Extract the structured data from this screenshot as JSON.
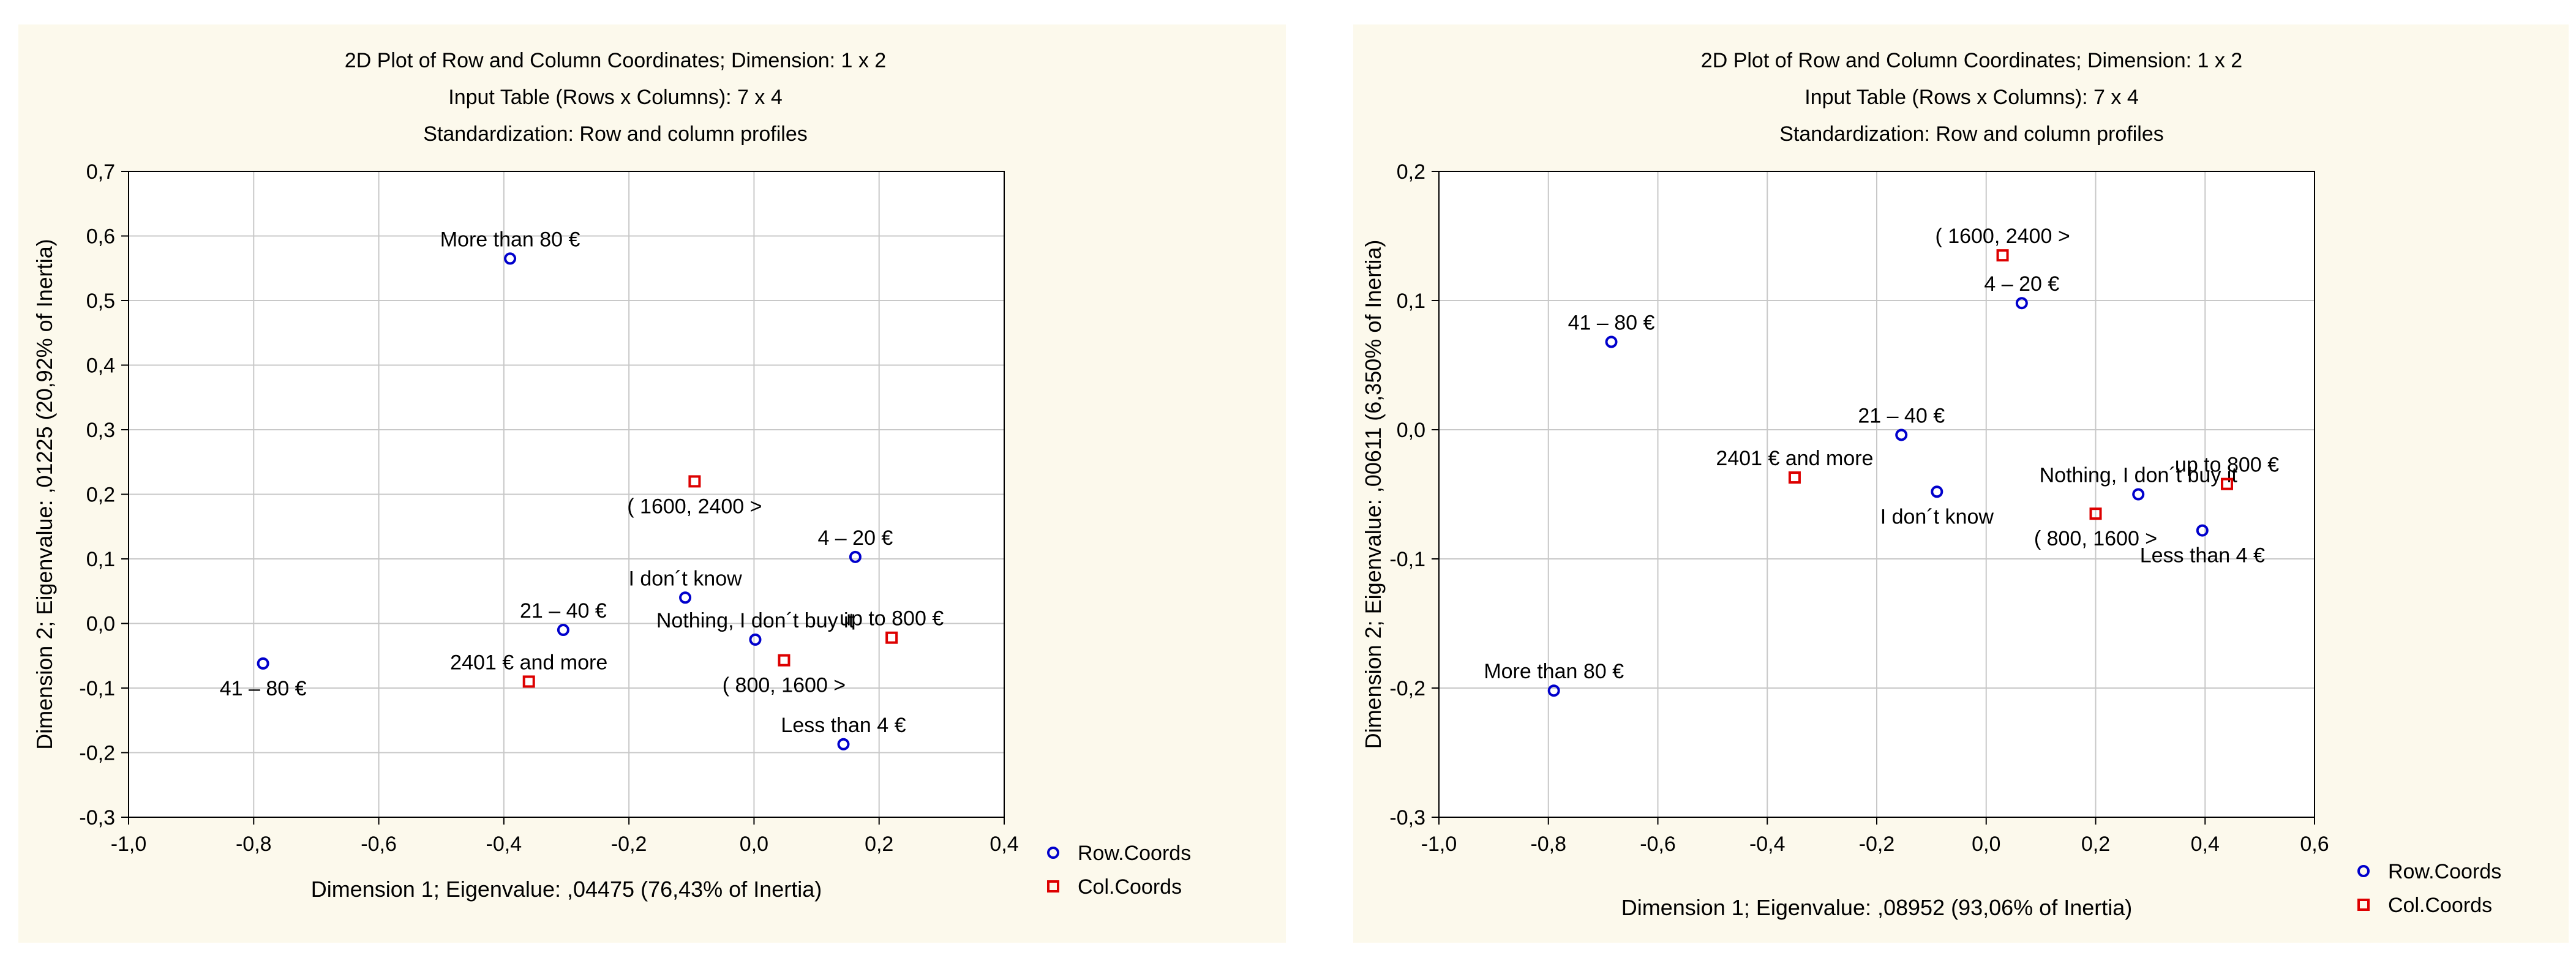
{
  "chart_data": [
    {
      "type": "scatter",
      "title_lines": [
        "2D Plot of Row and Column Coordinates; Dimension:  1 x  2",
        "Input Table (Rows x Columns): 7 x 4",
        "Standardization: Row and column profiles"
      ],
      "xlabel": "Dimension 1; Eigenvalue: ,04475 (76,43% of Inertia)",
      "ylabel": "Dimension 2; Eigenvalue: ,01225 (20,92% of Inertia)",
      "xlim": [
        -1.0,
        0.4
      ],
      "ylim": [
        -0.3,
        0.7
      ],
      "x_ticks": [
        -1.0,
        -0.8,
        -0.6,
        -0.4,
        -0.2,
        0.0,
        0.2,
        0.4
      ],
      "x_tick_labels": [
        "-1,0",
        "-0,8",
        "-0,6",
        "-0,4",
        "-0,2",
        "0,0",
        "0,2",
        "0,4"
      ],
      "y_ticks": [
        -0.3,
        -0.2,
        -0.1,
        0.0,
        0.1,
        0.2,
        0.3,
        0.4,
        0.5,
        0.6,
        0.7
      ],
      "y_tick_labels": [
        "-0,3",
        "-0,2",
        "-0,1",
        "0,0",
        "0,1",
        "0,2",
        "0,3",
        "0,4",
        "0,5",
        "0,6",
        "0,7"
      ],
      "grid": true,
      "legend": [
        {
          "name": "Row.Coords",
          "marker": "circle",
          "color": "#0000cc"
        },
        {
          "name": "Col.Coords",
          "marker": "square",
          "color": "#dd0000"
        }
      ],
      "series": [
        {
          "name": "Row.Coords",
          "points": [
            {
              "label": "More than 80 €",
              "x": -0.39,
              "y": 0.565,
              "label_pos": "above"
            },
            {
              "label": "41 – 80 €",
              "x": -0.785,
              "y": -0.062,
              "label_pos": "below"
            },
            {
              "label": "21 – 40 €",
              "x": -0.305,
              "y": -0.01,
              "label_pos": "above"
            },
            {
              "label": "I don´t know",
              "x": -0.11,
              "y": 0.04,
              "label_pos": "above"
            },
            {
              "label": "Nothing, I don´t buy it",
              "x": 0.002,
              "y": -0.025,
              "label_pos": "above"
            },
            {
              "label": "4 – 20 €",
              "x": 0.162,
              "y": 0.103,
              "label_pos": "above"
            },
            {
              "label": "Less than 4 €",
              "x": 0.143,
              "y": -0.187,
              "label_pos": "above"
            }
          ]
        },
        {
          "name": "Col.Coords",
          "points": [
            {
              "label": "( 1600, 2400 >",
              "x": -0.095,
              "y": 0.22,
              "label_pos": "below"
            },
            {
              "label": "2401 € and more",
              "x": -0.36,
              "y": -0.09,
              "label_pos": "above"
            },
            {
              "label": "( 800, 1600 >",
              "x": 0.048,
              "y": -0.057,
              "label_pos": "below"
            },
            {
              "label": "up to 800 €",
              "x": 0.22,
              "y": -0.022,
              "label_pos": "above"
            }
          ]
        }
      ]
    },
    {
      "type": "scatter",
      "title_lines": [
        "2D Plot of Row and Column Coordinates; Dimension:  1 x  2",
        "Input Table (Rows x Columns): 7 x 4",
        "Standardization: Row and column profiles"
      ],
      "xlabel": "Dimension 1; Eigenvalue: ,08952 (93,06% of Inertia)",
      "ylabel": "Dimension 2; Eigenvalue: ,00611 (6,350% of Inertia)",
      "xlim": [
        -1.0,
        0.6
      ],
      "ylim": [
        -0.3,
        0.2
      ],
      "x_ticks": [
        -1.0,
        -0.8,
        -0.6,
        -0.4,
        -0.2,
        0.0,
        0.2,
        0.4,
        0.6
      ],
      "x_tick_labels": [
        "-1,0",
        "-0,8",
        "-0,6",
        "-0,4",
        "-0,2",
        "0,0",
        "0,2",
        "0,4",
        "0,6"
      ],
      "y_ticks": [
        -0.3,
        -0.2,
        -0.1,
        0.0,
        0.1,
        0.2
      ],
      "y_tick_labels": [
        "-0,3",
        "-0,2",
        "-0,1",
        "0,0",
        "0,1",
        "0,2"
      ],
      "grid": true,
      "legend": [
        {
          "name": "Row.Coords",
          "marker": "circle",
          "color": "#0000cc"
        },
        {
          "name": "Col.Coords",
          "marker": "square",
          "color": "#dd0000"
        }
      ],
      "series": [
        {
          "name": "Row.Coords",
          "points": [
            {
              "label": "4 – 20 €",
              "x": 0.065,
              "y": 0.098,
              "label_pos": "above"
            },
            {
              "label": "41 – 80 €",
              "x": -0.685,
              "y": 0.068,
              "label_pos": "above"
            },
            {
              "label": "21 – 40 €",
              "x": -0.155,
              "y": -0.004,
              "label_pos": "above"
            },
            {
              "label": "I don´t know",
              "x": -0.09,
              "y": -0.048,
              "label_pos": "below"
            },
            {
              "label": "Nothing, I don´t buy it",
              "x": 0.278,
              "y": -0.05,
              "label_pos": "above"
            },
            {
              "label": "Less than 4 €",
              "x": 0.395,
              "y": -0.078,
              "label_pos": "below"
            },
            {
              "label": "More than 80 €",
              "x": -0.79,
              "y": -0.202,
              "label_pos": "above"
            }
          ]
        },
        {
          "name": "Col.Coords",
          "points": [
            {
              "label": "( 1600, 2400 >",
              "x": 0.03,
              "y": 0.135,
              "label_pos": "above"
            },
            {
              "label": "2401 € and more",
              "x": -0.35,
              "y": -0.037,
              "label_pos": "above"
            },
            {
              "label": "( 800, 1600 >",
              "x": 0.2,
              "y": -0.065,
              "label_pos": "below"
            },
            {
              "label": "up to 800 €",
              "x": 0.44,
              "y": -0.042,
              "label_pos": "above"
            }
          ]
        }
      ]
    }
  ]
}
